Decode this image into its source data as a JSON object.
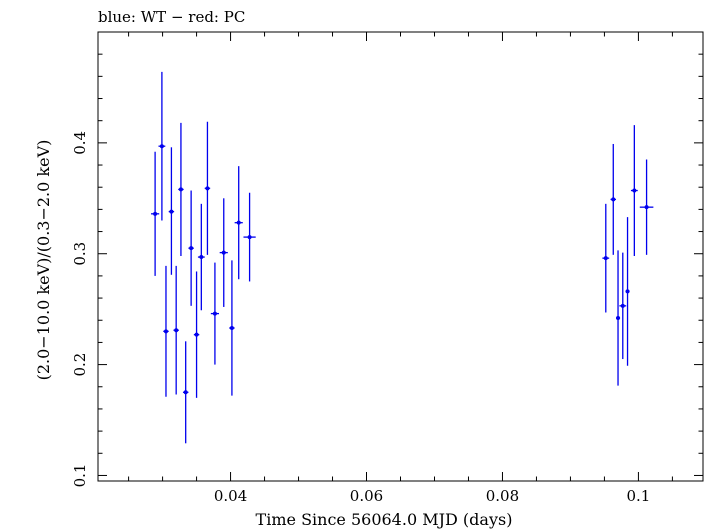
{
  "chart_data": {
    "type": "scatter",
    "title": "blue: WT − red: PC",
    "xlabel": "Time Since 56064.0 MJD (days)",
    "ylabel": "(2.0−10.0 keV)/(0.3−2.0 keV)",
    "xlim": [
      0.0205,
      0.1095
    ],
    "ylim": [
      0.095,
      0.5
    ],
    "x_ticks": [
      0.04,
      0.06,
      0.08,
      0.1
    ],
    "x_tick_labels": [
      "0.04",
      "0.06",
      "0.08",
      "0.1"
    ],
    "y_ticks": [
      0.1,
      0.2,
      0.3,
      0.4
    ],
    "y_tick_labels": [
      "0.1",
      "0.2",
      "0.3",
      "0.4"
    ],
    "grid": false,
    "legend": "none",
    "series": [
      {
        "color": "#0000ee",
        "points": [
          {
            "x": 0.0289,
            "xerr": 0.0006,
            "y": 0.336,
            "yerr_low": 0.056,
            "yerr_high": 0.056
          },
          {
            "x": 0.0299,
            "xerr": 0.0005,
            "y": 0.397,
            "yerr_low": 0.067,
            "yerr_high": 0.067
          },
          {
            "x": 0.0305,
            "xerr": 0.0004,
            "y": 0.23,
            "yerr_low": 0.059,
            "yerr_high": 0.059
          },
          {
            "x": 0.0313,
            "xerr": 0.0004,
            "y": 0.338,
            "yerr_low": 0.057,
            "yerr_high": 0.058
          },
          {
            "x": 0.032,
            "xerr": 0.0004,
            "y": 0.231,
            "yerr_low": 0.058,
            "yerr_high": 0.058
          },
          {
            "x": 0.0327,
            "xerr": 0.0004,
            "y": 0.358,
            "yerr_low": 0.06,
            "yerr_high": 0.06
          },
          {
            "x": 0.0334,
            "xerr": 0.0004,
            "y": 0.175,
            "yerr_low": 0.046,
            "yerr_high": 0.046
          },
          {
            "x": 0.0342,
            "xerr": 0.0004,
            "y": 0.305,
            "yerr_low": 0.052,
            "yerr_high": 0.052
          },
          {
            "x": 0.035,
            "xerr": 0.0004,
            "y": 0.227,
            "yerr_low": 0.057,
            "yerr_high": 0.057
          },
          {
            "x": 0.0357,
            "xerr": 0.0005,
            "y": 0.297,
            "yerr_low": 0.048,
            "yerr_high": 0.048
          },
          {
            "x": 0.0366,
            "xerr": 0.0004,
            "y": 0.359,
            "yerr_low": 0.06,
            "yerr_high": 0.06
          },
          {
            "x": 0.0377,
            "xerr": 0.0006,
            "y": 0.246,
            "yerr_low": 0.046,
            "yerr_high": 0.046
          },
          {
            "x": 0.039,
            "xerr": 0.0006,
            "y": 0.301,
            "yerr_low": 0.049,
            "yerr_high": 0.049
          },
          {
            "x": 0.0402,
            "xerr": 0.0004,
            "y": 0.233,
            "yerr_low": 0.061,
            "yerr_high": 0.061
          },
          {
            "x": 0.0412,
            "xerr": 0.0006,
            "y": 0.328,
            "yerr_low": 0.051,
            "yerr_high": 0.051
          },
          {
            "x": 0.0428,
            "xerr": 0.0009,
            "y": 0.315,
            "yerr_low": 0.04,
            "yerr_high": 0.04
          },
          {
            "x": 0.0952,
            "xerr": 0.0005,
            "y": 0.296,
            "yerr_low": 0.049,
            "yerr_high": 0.049
          },
          {
            "x": 0.0963,
            "xerr": 0.0004,
            "y": 0.349,
            "yerr_low": 0.05,
            "yerr_high": 0.05
          },
          {
            "x": 0.097,
            "xerr": 0.0003,
            "y": 0.242,
            "yerr_low": 0.061,
            "yerr_high": 0.061
          },
          {
            "x": 0.0977,
            "xerr": 0.0005,
            "y": 0.253,
            "yerr_low": 0.048,
            "yerr_high": 0.048
          },
          {
            "x": 0.0984,
            "xerr": 0.0003,
            "y": 0.266,
            "yerr_low": 0.067,
            "yerr_high": 0.067
          },
          {
            "x": 0.0994,
            "xerr": 0.0005,
            "y": 0.357,
            "yerr_low": 0.059,
            "yerr_high": 0.059
          },
          {
            "x": 0.1012,
            "xerr": 0.001,
            "y": 0.342,
            "yerr_low": 0.043,
            "yerr_high": 0.043
          }
        ]
      }
    ]
  }
}
